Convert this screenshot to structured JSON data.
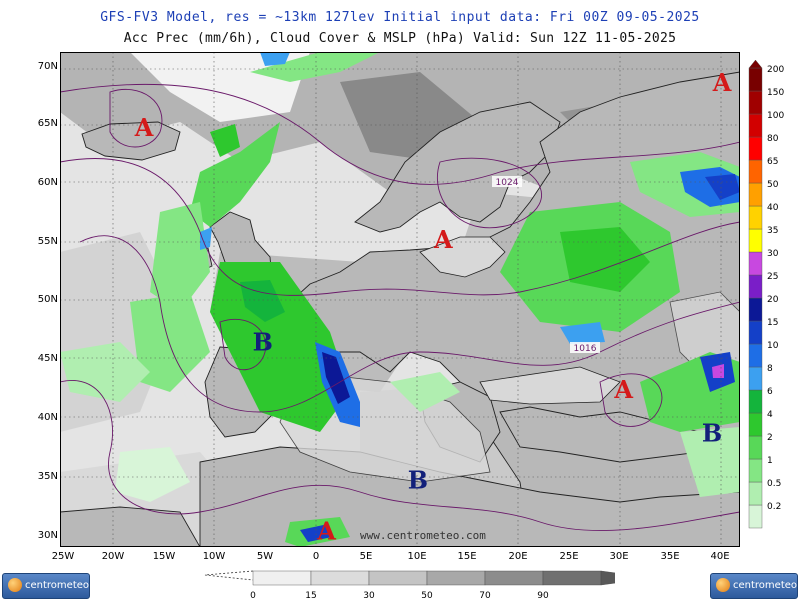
{
  "header": {
    "line1": "GFS-FV3 Model, res = ~13km 127lev   Initial input data: Fri 00Z 09-05-2025",
    "line2": "Acc Prec (mm/6h), Cloud Cover & MSLP (hPa)  Valid: Sun 12Z 11-05-2025"
  },
  "axes": {
    "lat_labels": [
      "70N",
      "65N",
      "60N",
      "55N",
      "50N",
      "45N",
      "40N",
      "35N",
      "30N"
    ],
    "lon_labels": [
      "25W",
      "20W",
      "15W",
      "10W",
      "5W",
      "0",
      "5E",
      "10E",
      "15E",
      "20E",
      "25E",
      "30E",
      "35E",
      "40E"
    ]
  },
  "isobar_labels": [
    "1024",
    "1016"
  ],
  "pressure_centers": [
    {
      "letter": "A",
      "lon": -17,
      "lat": 64,
      "color": "#d41a1a"
    },
    {
      "letter": "A",
      "lon": 40,
      "lat": 67.8,
      "color": "#d41a1a"
    },
    {
      "letter": "A",
      "lon": 12.5,
      "lat": 54.5,
      "color": "#d41a1a"
    },
    {
      "letter": "A",
      "lon": 30.3,
      "lat": 41.8,
      "color": "#d41a1a"
    },
    {
      "letter": "A",
      "lon": 1,
      "lat": 29.8,
      "color": "#d41a1a"
    },
    {
      "letter": "B",
      "lon": -5.3,
      "lat": 45.8,
      "color": "#12207a"
    },
    {
      "letter": "B",
      "lon": 10,
      "lat": 34.1,
      "color": "#12207a"
    },
    {
      "letter": "B",
      "lon": 39,
      "lat": 38.1,
      "color": "#12207a"
    }
  ],
  "watermark": "www.centrometeo.com",
  "logos": {
    "left": "centrometeo",
    "right": "centrometeo"
  },
  "precip_scale": {
    "levels": [
      "0.2",
      "0.5",
      "1",
      "2",
      "4",
      "6",
      "8",
      "10",
      "15",
      "20",
      "25",
      "30",
      "35",
      "40",
      "50",
      "65",
      "80",
      "100",
      "150",
      "200"
    ],
    "colors": [
      "#d8f5d8",
      "#b0eeb0",
      "#84e684",
      "#58d858",
      "#2ec82e",
      "#14b43c",
      "#3ca0f0",
      "#1e6ee6",
      "#1440c8",
      "#0c1896",
      "#7a1ec8",
      "#c848e0",
      "#ffff00",
      "#ffd200",
      "#ffa000",
      "#ff6400",
      "#ff0000",
      "#d20000",
      "#a00000",
      "#780000"
    ]
  },
  "cloud_scale": {
    "labels": [
      "0",
      "15",
      "30",
      "50",
      "70",
      "90"
    ],
    "colors": [
      "#f0f0f0",
      "#dcdcdc",
      "#c4c4c4",
      "#a8a8a8",
      "#8c8c8c",
      "#707070"
    ]
  },
  "colors": {
    "title1": "#1c3fb5",
    "isobar": "#6a1a6a",
    "land": "#b4b4b4",
    "sea": "#e8e8e8"
  }
}
